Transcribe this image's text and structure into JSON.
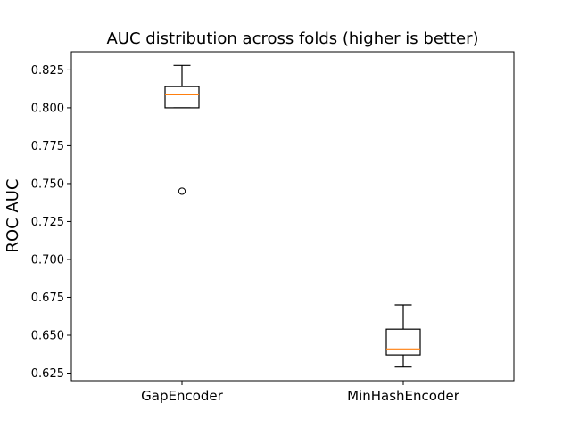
{
  "chart_data": {
    "type": "box",
    "title": "AUC distribution across folds (higher is better)",
    "xlabel": "",
    "ylabel": "ROC AUC",
    "ylim": [
      0.62,
      0.837
    ],
    "yticks": [
      "0.625",
      "0.650",
      "0.675",
      "0.700",
      "0.725",
      "0.750",
      "0.775",
      "0.800",
      "0.825"
    ],
    "grid": false,
    "categories": [
      "GapEncoder",
      "MinHashEncoder"
    ],
    "boxes": [
      {
        "label": "GapEncoder",
        "whislo": 0.8,
        "q1": 0.8,
        "med": 0.809,
        "q3": 0.814,
        "whishi": 0.828,
        "fliers": [
          0.745
        ]
      },
      {
        "label": "MinHashEncoder",
        "whislo": 0.629,
        "q1": 0.637,
        "med": 0.641,
        "q3": 0.654,
        "whishi": 0.67,
        "fliers": []
      }
    ],
    "colors": {
      "box": "#000000",
      "median": "#ff7f0e"
    }
  }
}
